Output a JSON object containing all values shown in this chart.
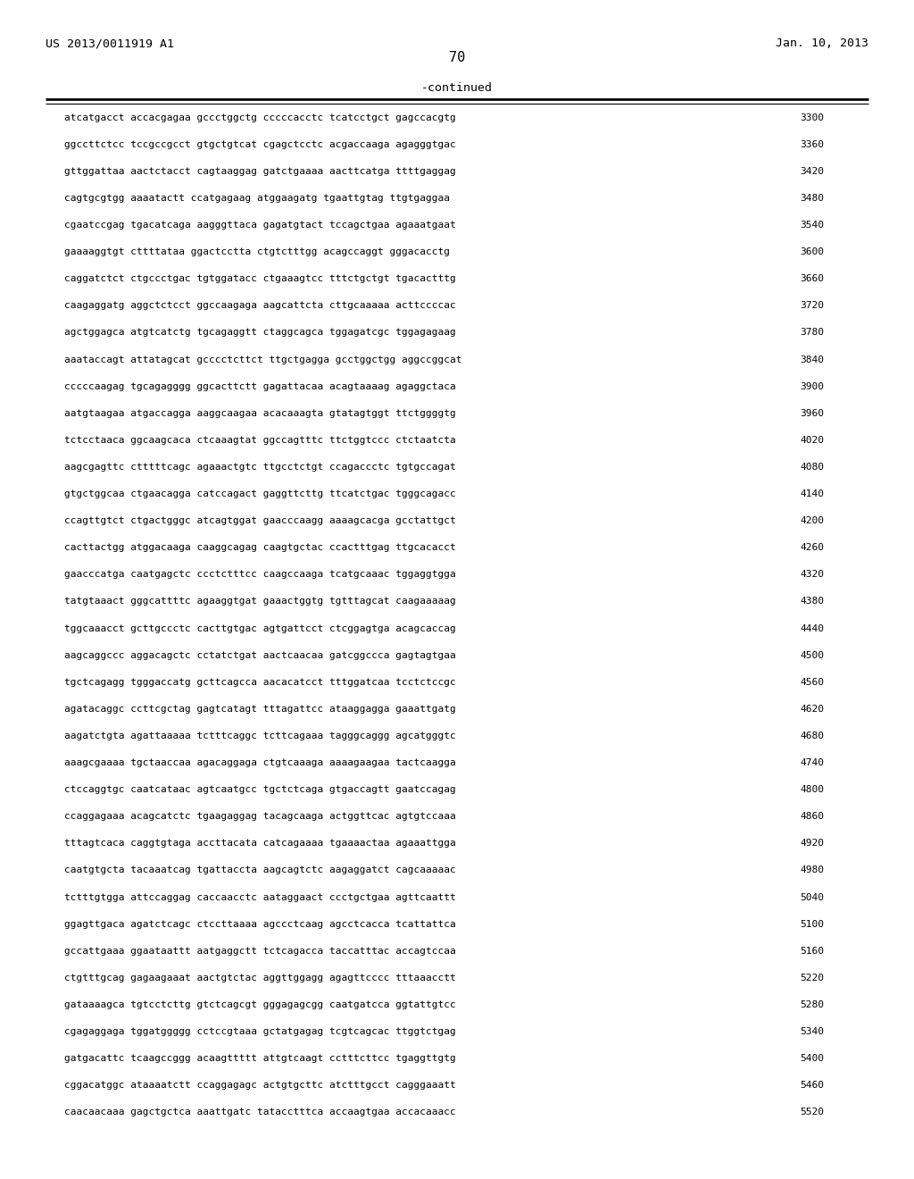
{
  "patent_number": "US 2013/0011919 A1",
  "date": "Jan. 10, 2013",
  "page_number": "70",
  "continued_label": "-continued",
  "background_color": "#ffffff",
  "text_color": "#000000",
  "sequence_lines": [
    [
      "atcatgacct accacgagaa gccctggctg cccccacctc tcatcctgct gagccacgtg",
      "3300"
    ],
    [
      "ggccttctcc tccgccgcct gtgctgtcat cgagctcctc acgaccaaga agagggtgac",
      "3360"
    ],
    [
      "gttggattaa aactctacct cagtaaggag gatctgaaaa aacttcatga ttttgaggag",
      "3420"
    ],
    [
      "cagtgcgtgg aaaatactt ccatgagaag atggaagatg tgaattgtag ttgtgaggaa",
      "3480"
    ],
    [
      "cgaatccgag tgacatcaga aagggttaca gagatgtact tccagctgaa agaaatgaat",
      "3540"
    ],
    [
      "gaaaaggtgt cttttataa ggactcctta ctgtctttgg acagccaggt gggacacctg",
      "3600"
    ],
    [
      "caggatctct ctgccctgac tgtggatacc ctgaaagtcc tttctgctgt tgacactttg",
      "3660"
    ],
    [
      "caagaggatg aggctctcct ggccaagaga aagcattcta cttgcaaaaa acttccccac",
      "3720"
    ],
    [
      "agctggagca atgtcatctg tgcagaggtt ctaggcagca tggagatcgc tggagagaag",
      "3780"
    ],
    [
      "aaataccagt attatagcat gcccctcttct ttgctgagga gcctggctgg aggccggcat",
      "3840"
    ],
    [
      "cccccaagag tgcagagggg ggcacttctt gagattacaa acagtaaaag agaggctaca",
      "3900"
    ],
    [
      "aatgtaagaa atgaccagga aaggcaagaa acacaaagta gtatagtggt ttctggggtg",
      "3960"
    ],
    [
      "tctcctaaca ggcaagcaca ctcaaagtat ggccagtttc ttctggtccc ctctaatcta",
      "4020"
    ],
    [
      "aagcgagttc ctttttcagc agaaactgtc ttgcctctgt ccagaccctc tgtgccagat",
      "4080"
    ],
    [
      "gtgctggcaa ctgaacagga catccagact gaggttcttg ttcatctgac tgggcagacc",
      "4140"
    ],
    [
      "ccagttgtct ctgactgggc atcagtggat gaacccaagg aaaagcacga gcctattgct",
      "4200"
    ],
    [
      "cacttactgg atggacaaga caaggcagag caagtgctac ccactttgag ttgcacacct",
      "4260"
    ],
    [
      "gaacccatga caatgagctc ccctctttcc caagccaaga tcatgcaaac tggaggtgga",
      "4320"
    ],
    [
      "tatgtaaact gggcattttc agaaggtgat gaaactggtg tgtttagcat caagaaaaag",
      "4380"
    ],
    [
      "tggcaaacct gcttgccctc cacttgtgac agtgattcct ctcggagtga acagcaccag",
      "4440"
    ],
    [
      "aagcaggccc aggacagctc cctatctgat aactcaacaa gatcggccca gagtagtgaa",
      "4500"
    ],
    [
      "tgctcagagg tgggaccatg gcttcagcca aacacatcct tttggatcaa tcctctccgc",
      "4560"
    ],
    [
      "agatacaggc ccttcgctag gagtcatagt tttagattcc ataaggagga gaaattgatg",
      "4620"
    ],
    [
      "aagatctgta agattaaaaa tctttcaggc tcttcagaaa tagggcaggg agcatgggtc",
      "4680"
    ],
    [
      "aaagcgaaaa tgctaaccaa agacaggaga ctgtcaaaga aaaagaagaa tactcaagga",
      "4740"
    ],
    [
      "ctccaggtgc caatcataac agtcaatgcc tgctctcaga gtgaccagtt gaatccagag",
      "4800"
    ],
    [
      "ccaggagaaa acagcatctc tgaagaggag tacagcaaga actggttcac agtgtccaaa",
      "4860"
    ],
    [
      "tttagtcaca caggtgtaga accttacata catcagaaaa tgaaaactaa agaaattgga",
      "4920"
    ],
    [
      "caatgtgcta tacaaatcag tgattaccta aagcagtctc aagaggatct cagcaaaaac",
      "4980"
    ],
    [
      "tctttgtgga attccaggag caccaacctc aataggaact ccctgctgaa agttcaattt",
      "5040"
    ],
    [
      "ggagttgaca agatctcagc ctccttaaaa agccctcaag agcctcacca tcattattca",
      "5100"
    ],
    [
      "gccattgaaa ggaataattt aatgaggctt tctcagacca taccatttac accagtccaa",
      "5160"
    ],
    [
      "ctgtttgcag gagaagaaat aactgtctac aggttggagg agagttcccc tttaaacctt",
      "5220"
    ],
    [
      "gataaaagca tgtcctcttg gtctcagcgt gggagagcgg caatgatcca ggtattgtcc",
      "5280"
    ],
    [
      "cgagaggaga tggatggggg cctccgtaaa gctatgagag tcgtcagcac ttggtctgag",
      "5340"
    ],
    [
      "gatgacattc tcaagccggg acaagttttt attgtcaagt cctttcttcc tgaggttgtg",
      "5400"
    ],
    [
      "cggacatggc ataaaatctt ccaggagagc actgtgcttc atctttgcct cagggaaatt",
      "5460"
    ],
    [
      "caacaacaaa gagctgctca aaattgatc tatacctttca accaagtgaa accacaaacc",
      "5520"
    ]
  ]
}
